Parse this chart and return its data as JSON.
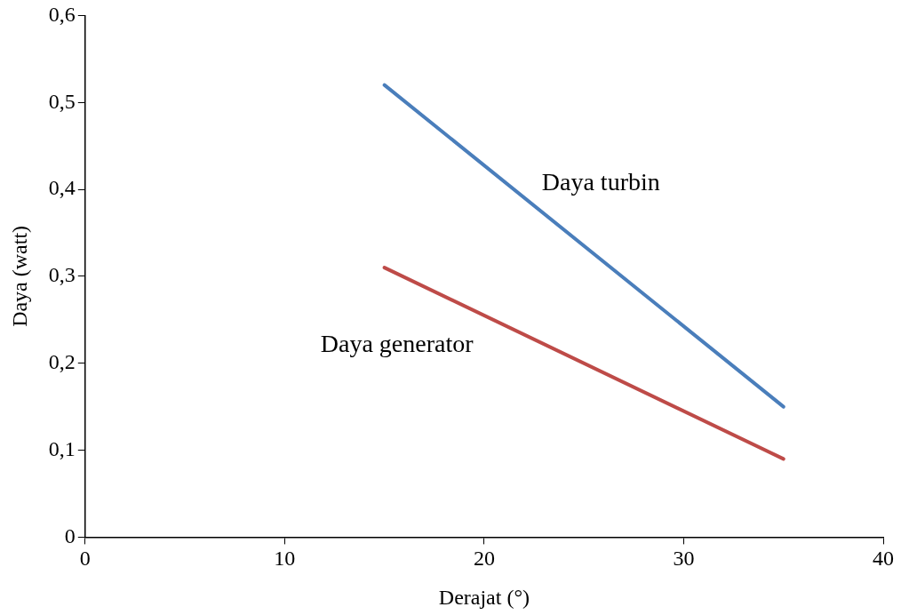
{
  "chart_data": {
    "type": "line",
    "xlabel": "Derajat (°)",
    "ylabel": "Daya (watt)",
    "x": [
      15,
      35
    ],
    "xlim": [
      0,
      40
    ],
    "xticks": [
      0,
      10,
      20,
      30,
      40
    ],
    "ylim": [
      0,
      0.6
    ],
    "yticks": [
      0,
      {
        "value": 0.1,
        "label": "0,1"
      },
      {
        "value": 0.2,
        "label": "0,2"
      },
      {
        "value": 0.3,
        "label": "0,3"
      },
      {
        "value": 0.4,
        "label": "0,4"
      },
      {
        "value": 0.5,
        "label": "0,5"
      },
      {
        "value": 0.6,
        "label": "0,6"
      }
    ],
    "grid": false,
    "legend": false,
    "marker": "none",
    "line_style": "solid",
    "series": [
      {
        "name": "Daya turbin",
        "color": "#4a7ebb",
        "values": [
          0.52,
          0.15
        ]
      },
      {
        "name": "Daya generator",
        "color": "#be4b48",
        "values": [
          0.31,
          0.09
        ]
      }
    ]
  }
}
